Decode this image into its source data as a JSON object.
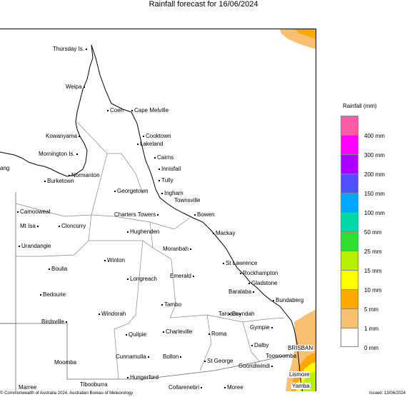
{
  "title": "Rainfall forecast for 16/06/2024",
  "legend": {
    "title": "Rainfall (mm)",
    "items": [
      {
        "label": "400 mm",
        "color": "#ff5aa8"
      },
      {
        "label": "300 mm",
        "color": "#ff00ff"
      },
      {
        "label": "200 mm",
        "color": "#aa00ff"
      },
      {
        "label": "150 mm",
        "color": "#5050ff"
      },
      {
        "label": "100 mm",
        "color": "#00a8ff"
      },
      {
        "label": "50 mm",
        "color": "#00d8a8"
      },
      {
        "label": "25 mm",
        "color": "#30e030"
      },
      {
        "label": "15 mm",
        "color": "#b8f000"
      },
      {
        "label": "10 mm",
        "color": "#ffff00"
      },
      {
        "label": "5 mm",
        "color": "#ffa800"
      },
      {
        "label": "1 mm",
        "color": "#f8c070"
      },
      {
        "label": "0 mm",
        "color": "#ffffff"
      }
    ]
  },
  "towns": {
    "thursday": "Thursday Is.",
    "weipa": "Weipa",
    "coen": "Coen",
    "cape_melville": "Cape Melville",
    "kowanyama": "Kowanyama",
    "cooktown": "Cooktown",
    "lakeland": "Lakeland",
    "mornington": "Mornington Is.",
    "cairns": "Cairns",
    "innisfail": "Innisfail",
    "tully": "Tully",
    "normanton": "Normanton",
    "burketown": "Burketown",
    "ang": "ang",
    "georgetown": "Georgetown",
    "ingham": "Ingham",
    "townsville": "Townsville",
    "camooweal": "Camooweal",
    "charters_towers": "Charters Towers",
    "bowen": "Bowen",
    "mt_isa": "Mt Isa",
    "cloncurry": "Cloncurry",
    "hughenden": "Hughenden",
    "mackay": "Mackay",
    "urandangie": "Urandangie",
    "moranbah": "Moranbah",
    "winton": "Winton",
    "st_lawrence": "St Lawrence",
    "boulia": "Boulia",
    "rockhampton": "Rockhampton",
    "emerald": "Emerald",
    "longreach": "Longreach",
    "gladstone": "Gladstone",
    "bedourie": "Bedourie",
    "baralaba": "Baralaba",
    "bundaberg": "Bundaberg",
    "tambo": "Tambo",
    "windorah": "Windorah",
    "taroom": "Taroom",
    "gayndah": "Gayndah",
    "birdsville": "Birdsville",
    "gympie": "Gympie",
    "quilpie": "Quilpie",
    "charleville": "Charleville",
    "roma": "Roma",
    "dalby": "Dalby",
    "brisbane": "BRISBAN",
    "toowoomba": "Toowoomba",
    "cunnamulla": "Cunnamulla",
    "bollon": "Bollon",
    "st_george": "St George",
    "moomba": "Moomba",
    "goondiwindi": "Goondiwindi",
    "hungerford": "Hungerford",
    "lismore": "Lismore",
    "marree": "Marree",
    "tibooburra": "Tibooburra",
    "collarenebri": "Collarenebri",
    "moree": "Moree",
    "yamba": "Yamba"
  },
  "footer": {
    "copyright": "© Commonwealth of Australia 2024, Australian Bureau of Meteorology",
    "issued": "Issued: 13/06/2024"
  }
}
